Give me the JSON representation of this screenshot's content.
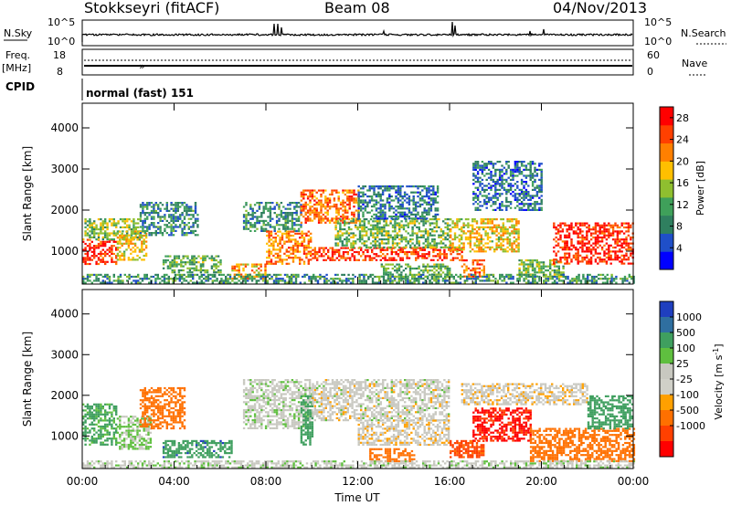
{
  "header": {
    "station": "Stokkseyri (fitACF)",
    "beam": "Beam 08",
    "date": "04/Nov/2013"
  },
  "strip": {
    "nsky_label": "N.Sky",
    "nsky_ticks": [
      "10^5",
      "10^0"
    ],
    "nsearch_label": "N.Search",
    "nsearch_ticks": [
      "10^5",
      "10^0"
    ],
    "freq_label": "Freq.",
    "freq_unit": "[MHz]",
    "freq_ticks": [
      "18",
      "8"
    ],
    "nave_label": "Nave",
    "nave_ticks": [
      "60",
      "0"
    ],
    "cpid_label": "CPID",
    "cpid_value": "normal (fast) 151"
  },
  "colors": {
    "power": [
      "#0000ff",
      "#1f4fc8",
      "#2f7f5f",
      "#3fa05a",
      "#8fbf2f",
      "#ffbf00",
      "#ff8000",
      "#ff4000",
      "#ff0000"
    ],
    "velocity": [
      "#1f3fbf",
      "#2f6fa0",
      "#3f9f5f",
      "#5fbf3f",
      "#c8c8c0",
      "#d0d0c8",
      "#ffa000",
      "#ff7000",
      "#ff4000",
      "#ff0000"
    ]
  },
  "chart_data": [
    {
      "type": "heatmap",
      "name": "power",
      "xlabel": "",
      "ylabel": "Slant Range [km]",
      "xlim": [
        0,
        24
      ],
      "ylim": [
        200,
        4600
      ],
      "x_ticks": [
        "00:00",
        "04:00",
        "08:00",
        "12:00",
        "16:00",
        "20:00",
        "00:00"
      ],
      "y_ticks": [
        1000,
        2000,
        3000,
        4000
      ],
      "colorbar_label": "Power [dB]",
      "colorbar_ticks": [
        4,
        8,
        12,
        16,
        20,
        24,
        28
      ],
      "colorbar_range": [
        0,
        30
      ],
      "regions": [
        {
          "t": [
            0.0,
            1.5
          ],
          "r": [
            700,
            1300
          ],
          "level": 27
        },
        {
          "t": [
            0.0,
            2.5
          ],
          "r": [
            1300,
            1800
          ],
          "level": 14
        },
        {
          "t": [
            1.5,
            2.8
          ],
          "r": [
            800,
            1500
          ],
          "level": 18
        },
        {
          "t": [
            2.5,
            5.0
          ],
          "r": [
            1400,
            2200
          ],
          "level": 9
        },
        {
          "t": [
            3.5,
            6.0
          ],
          "r": [
            500,
            900
          ],
          "level": 12
        },
        {
          "t": [
            6.5,
            8.0
          ],
          "r": [
            350,
            700
          ],
          "level": 20
        },
        {
          "t": [
            7.0,
            9.5
          ],
          "r": [
            1500,
            2200
          ],
          "level": 9
        },
        {
          "t": [
            8.0,
            10.0
          ],
          "r": [
            700,
            1500
          ],
          "level": 22
        },
        {
          "t": [
            9.5,
            12.0
          ],
          "r": [
            1700,
            2500
          ],
          "level": 23
        },
        {
          "t": [
            10.0,
            16.5
          ],
          "r": [
            800,
            1100
          ],
          "level": 26
        },
        {
          "t": [
            11.0,
            16.0
          ],
          "r": [
            1100,
            1800
          ],
          "level": 13
        },
        {
          "t": [
            12.0,
            15.5
          ],
          "r": [
            1800,
            2600
          ],
          "level": 8
        },
        {
          "t": [
            13.0,
            16.0
          ],
          "r": [
            300,
            700
          ],
          "level": 12
        },
        {
          "t": [
            16.0,
            19.0
          ],
          "r": [
            1000,
            1800
          ],
          "level": 18
        },
        {
          "t": [
            16.5,
            17.5
          ],
          "r": [
            400,
            800
          ],
          "level": 24
        },
        {
          "t": [
            17.0,
            20.0
          ],
          "r": [
            2000,
            3200
          ],
          "level": 7
        },
        {
          "t": [
            19.0,
            21.0
          ],
          "r": [
            400,
            800
          ],
          "level": 14
        },
        {
          "t": [
            20.5,
            24.0
          ],
          "r": [
            700,
            1700
          ],
          "level": 27
        },
        {
          "t": [
            0.0,
            24.0
          ],
          "r": [
            250,
            450
          ],
          "level": 10
        }
      ]
    },
    {
      "type": "heatmap",
      "name": "velocity",
      "xlabel": "Time UT",
      "ylabel": "Slant Range [km]",
      "xlim": [
        0,
        24
      ],
      "ylim": [
        200,
        4600
      ],
      "x_ticks": [
        "00:00",
        "04:00",
        "08:00",
        "12:00",
        "16:00",
        "20:00",
        "00:00"
      ],
      "y_ticks": [
        1000,
        2000,
        3000,
        4000
      ],
      "colorbar_label": "Velocity [m s^-1]",
      "colorbar_ticks": [
        "1000",
        "500",
        "100",
        "25",
        "-25",
        "-100",
        "-500",
        "-1000"
      ],
      "colorbar_range": [
        -1000,
        1000
      ],
      "regions": [
        {
          "t": [
            0.0,
            1.5
          ],
          "r": [
            800,
            1800
          ],
          "v": 120
        },
        {
          "t": [
            1.5,
            3.0
          ],
          "r": [
            700,
            1500
          ],
          "v": 30
        },
        {
          "t": [
            2.5,
            4.5
          ],
          "r": [
            1200,
            2200
          ],
          "v": -200
        },
        {
          "t": [
            3.5,
            6.5
          ],
          "r": [
            500,
            900
          ],
          "v": 400
        },
        {
          "t": [
            7.0,
            10.0
          ],
          "r": [
            1200,
            2400
          ],
          "v": 5
        },
        {
          "t": [
            9.5,
            10.0
          ],
          "r": [
            800,
            2000
          ],
          "v": 300
        },
        {
          "t": [
            10.0,
            16.0
          ],
          "r": [
            1400,
            2400
          ],
          "v": 0
        },
        {
          "t": [
            12.0,
            16.0
          ],
          "r": [
            800,
            1400
          ],
          "v": -10
        },
        {
          "t": [
            12.5,
            14.5
          ],
          "r": [
            400,
            700
          ],
          "v": -300
        },
        {
          "t": [
            16.0,
            17.5
          ],
          "r": [
            500,
            900
          ],
          "v": -600
        },
        {
          "t": [
            17.0,
            19.5
          ],
          "r": [
            900,
            1700
          ],
          "v": -900
        },
        {
          "t": [
            16.5,
            22.0
          ],
          "r": [
            1800,
            2300
          ],
          "v": -10
        },
        {
          "t": [
            19.5,
            24.0
          ],
          "r": [
            400,
            1200
          ],
          "v": -300
        },
        {
          "t": [
            22.0,
            24.0
          ],
          "r": [
            1200,
            2000
          ],
          "v": 150
        },
        {
          "t": [
            0.0,
            24.0
          ],
          "r": [
            250,
            400
          ],
          "v": 10
        }
      ]
    }
  ]
}
